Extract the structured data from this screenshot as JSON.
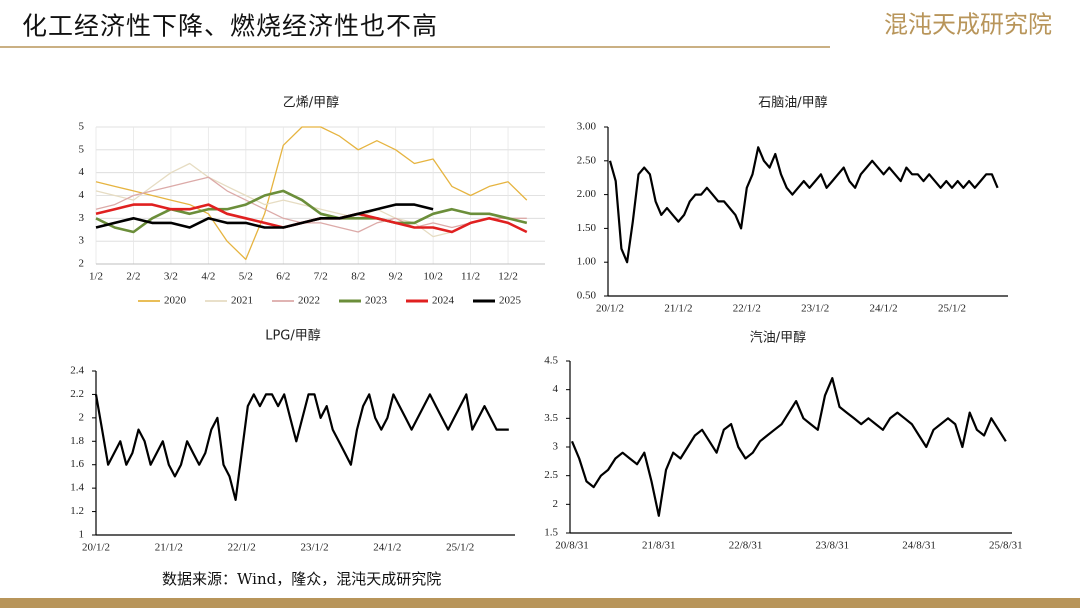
{
  "header": {
    "title": "化工经济性下降、燃烧经济性也不高",
    "logo": "混沌天成研究院"
  },
  "source": "数据来源：Wind，隆众，混沌天成研究院",
  "chart_data": [
    {
      "type": "line",
      "title": "乙烯/甲醇",
      "grid": true,
      "legend": "bottom",
      "categories": [
        "1/2",
        null,
        "2/2",
        null,
        "3/2",
        null,
        "4/2",
        null,
        "5/2",
        null,
        "6/2",
        null,
        "7/2",
        null,
        "8/2",
        null,
        "9/2",
        null,
        "10/2",
        null,
        "11/2",
        null,
        "12/2",
        null
      ],
      "ylim": [
        2,
        5
      ],
      "yticks": [
        2,
        {
          "value": 2.5,
          "label": "3"
        },
        3,
        {
          "value": 3.5,
          "label": "4"
        },
        4,
        {
          "value": 4.5,
          "label": "5"
        },
        5
      ],
      "series": [
        {
          "name": "2020",
          "color": "#e6b440",
          "line_width": 1.3,
          "values": [
            3.8,
            3.7,
            3.6,
            3.5,
            3.4,
            3.3,
            3.1,
            2.5,
            2.1,
            3.1,
            4.6,
            5.0,
            5.0,
            4.8,
            4.5,
            4.7,
            4.5,
            4.2,
            4.3,
            3.7,
            3.5,
            3.7,
            3.8,
            3.4
          ]
        },
        {
          "name": "2021",
          "color": "#e6dcc2",
          "line_width": 1.3,
          "values": [
            3.6,
            3.5,
            3.4,
            3.7,
            4.0,
            4.2,
            3.9,
            3.7,
            3.5,
            3.3,
            3.4,
            3.3,
            3.2,
            3.1,
            3.0,
            3.2,
            3.0,
            2.9,
            2.6,
            2.7,
            2.9,
            3.0,
            3.0,
            2.9
          ]
        },
        {
          "name": "2022",
          "color": "#dcaaa8",
          "line_width": 1.3,
          "values": [
            3.2,
            3.3,
            3.5,
            3.6,
            3.7,
            3.8,
            3.9,
            3.6,
            3.4,
            3.2,
            3.0,
            2.9,
            2.9,
            2.8,
            2.7,
            2.9,
            3.0,
            2.8,
            2.9,
            2.8,
            2.9,
            3.0,
            3.0,
            3.0
          ]
        },
        {
          "name": "2023",
          "color": "#6b8e3a",
          "line_width": 2.6,
          "values": [
            3.0,
            2.8,
            2.7,
            3.0,
            3.2,
            3.1,
            3.2,
            3.2,
            3.3,
            3.5,
            3.6,
            3.4,
            3.1,
            3.0,
            3.0,
            3.0,
            2.9,
            2.9,
            3.1,
            3.2,
            3.1,
            3.1,
            3.0,
            2.9
          ]
        },
        {
          "name": "2024",
          "color": "#e02020",
          "line_width": 2.6,
          "values": [
            3.1,
            3.2,
            3.3,
            3.3,
            3.2,
            3.2,
            3.3,
            3.1,
            3.0,
            2.9,
            2.8,
            2.9,
            3.0,
            3.0,
            3.1,
            3.0,
            2.9,
            2.8,
            2.8,
            2.7,
            2.9,
            3.0,
            2.9,
            2.7
          ]
        },
        {
          "name": "2025",
          "color": "#000000",
          "line_width": 2.6,
          "values": [
            2.8,
            2.9,
            3.0,
            2.9,
            2.9,
            2.8,
            3.0,
            2.9,
            2.9,
            2.8,
            2.8,
            2.9,
            3.0,
            3.0,
            3.1,
            3.2,
            3.3,
            3.3,
            3.2,
            null,
            null,
            null,
            null,
            null
          ]
        }
      ]
    },
    {
      "type": "line",
      "title": "石脑油/甲醇",
      "grid": false,
      "categories": [
        "20/1/2",
        null,
        null,
        null,
        null,
        null,
        null,
        null,
        null,
        null,
        null,
        null,
        "21/1/2",
        null,
        null,
        null,
        null,
        null,
        null,
        null,
        null,
        null,
        null,
        null,
        "22/1/2",
        null,
        null,
        null,
        null,
        null,
        null,
        null,
        null,
        null,
        null,
        null,
        "23/1/2",
        null,
        null,
        null,
        null,
        null,
        null,
        null,
        null,
        null,
        null,
        null,
        "24/1/2",
        null,
        null,
        null,
        null,
        null,
        null,
        null,
        null,
        null,
        null,
        null,
        "25/1/2",
        null,
        null,
        null,
        null,
        null,
        null,
        null,
        null
      ],
      "ylim": [
        0.5,
        3
      ],
      "yticks": [
        {
          "value": 0.5,
          "label": "0.50"
        },
        {
          "value": 1,
          "label": "1.00"
        },
        {
          "value": 1.5,
          "label": "1.50"
        },
        {
          "value": 2,
          "label": "2.00"
        },
        {
          "value": 2.5,
          "label": "2.50"
        },
        {
          "value": 3,
          "label": "3.00"
        }
      ],
      "series": [
        {
          "color": "#000000",
          "line_width": 2.2,
          "values": [
            2.5,
            2.2,
            1.2,
            1.0,
            1.6,
            2.3,
            2.4,
            2.3,
            1.9,
            1.7,
            1.8,
            1.7,
            1.6,
            1.7,
            1.9,
            2.0,
            2.0,
            2.1,
            2.0,
            1.9,
            1.9,
            1.8,
            1.7,
            1.5,
            2.1,
            2.3,
            2.7,
            2.5,
            2.4,
            2.6,
            2.3,
            2.1,
            2.0,
            2.1,
            2.2,
            2.1,
            2.2,
            2.3,
            2.1,
            2.2,
            2.3,
            2.4,
            2.2,
            2.1,
            2.3,
            2.4,
            2.5,
            2.4,
            2.3,
            2.4,
            2.3,
            2.2,
            2.4,
            2.3,
            2.3,
            2.2,
            2.3,
            2.2,
            2.1,
            2.2,
            2.1,
            2.2,
            2.1,
            2.2,
            2.1,
            2.2,
            2.3,
            2.3,
            2.1
          ]
        }
      ]
    },
    {
      "type": "line",
      "title": "LPG/甲醇",
      "grid": false,
      "categories": [
        "20/1/2",
        null,
        null,
        null,
        null,
        null,
        null,
        null,
        null,
        null,
        null,
        null,
        "21/1/2",
        null,
        null,
        null,
        null,
        null,
        null,
        null,
        null,
        null,
        null,
        null,
        "22/1/2",
        null,
        null,
        null,
        null,
        null,
        null,
        null,
        null,
        null,
        null,
        null,
        "23/1/2",
        null,
        null,
        null,
        null,
        null,
        null,
        null,
        null,
        null,
        null,
        null,
        "24/1/2",
        null,
        null,
        null,
        null,
        null,
        null,
        null,
        null,
        null,
        null,
        null,
        "25/1/2",
        null,
        null,
        null,
        null,
        null,
        null,
        null,
        null
      ],
      "ylim": [
        1,
        2.4
      ],
      "yticks": [
        1,
        1.2,
        1.4,
        1.6,
        1.8,
        2,
        2.2,
        2.4
      ],
      "series": [
        {
          "color": "#000000",
          "line_width": 2.2,
          "values": [
            2.2,
            1.9,
            1.6,
            1.7,
            1.8,
            1.6,
            1.7,
            1.9,
            1.8,
            1.6,
            1.7,
            1.8,
            1.6,
            1.5,
            1.6,
            1.8,
            1.7,
            1.6,
            1.7,
            1.9,
            2.0,
            1.6,
            1.5,
            1.3,
            1.7,
            2.1,
            2.2,
            2.1,
            2.2,
            2.2,
            2.1,
            2.2,
            2.0,
            1.8,
            2.0,
            2.2,
            2.2,
            2.0,
            2.1,
            1.9,
            1.8,
            1.7,
            1.6,
            1.9,
            2.1,
            2.2,
            2.0,
            1.9,
            2.0,
            2.2,
            2.1,
            2.0,
            1.9,
            2.0,
            2.1,
            2.2,
            2.1,
            2.0,
            1.9,
            2.0,
            2.1,
            2.2,
            1.9,
            2.0,
            2.1,
            2.0,
            1.9,
            1.9,
            1.9
          ]
        }
      ]
    },
    {
      "type": "line",
      "title": "汽油/甲醇",
      "grid": false,
      "categories": [
        "20/8/31",
        null,
        null,
        null,
        null,
        null,
        null,
        null,
        null,
        null,
        null,
        null,
        "21/8/31",
        null,
        null,
        null,
        null,
        null,
        null,
        null,
        null,
        null,
        null,
        null,
        "22/8/31",
        null,
        null,
        null,
        null,
        null,
        null,
        null,
        null,
        null,
        null,
        null,
        "23/8/31",
        null,
        null,
        null,
        null,
        null,
        null,
        null,
        null,
        null,
        null,
        null,
        "24/8/31",
        null,
        null,
        null,
        null,
        null,
        null,
        null,
        null,
        null,
        null,
        null,
        "25/8/31"
      ],
      "ylim": [
        1.5,
        4.5
      ],
      "yticks": [
        1.5,
        2,
        2.5,
        3,
        3.5,
        4,
        4.5
      ],
      "series": [
        {
          "color": "#000000",
          "line_width": 2.2,
          "values": [
            3.1,
            2.8,
            2.4,
            2.3,
            2.5,
            2.6,
            2.8,
            2.9,
            2.8,
            2.7,
            2.9,
            2.4,
            1.8,
            2.6,
            2.9,
            2.8,
            3.0,
            3.2,
            3.3,
            3.1,
            2.9,
            3.3,
            3.4,
            3.0,
            2.8,
            2.9,
            3.1,
            3.2,
            3.3,
            3.4,
            3.6,
            3.8,
            3.5,
            3.4,
            3.3,
            3.9,
            4.2,
            3.7,
            3.6,
            3.5,
            3.4,
            3.5,
            3.4,
            3.3,
            3.5,
            3.6,
            3.5,
            3.4,
            3.2,
            3.0,
            3.3,
            3.4,
            3.5,
            3.4,
            3.0,
            3.6,
            3.3,
            3.2,
            3.5,
            3.3,
            3.1
          ]
        }
      ]
    }
  ]
}
